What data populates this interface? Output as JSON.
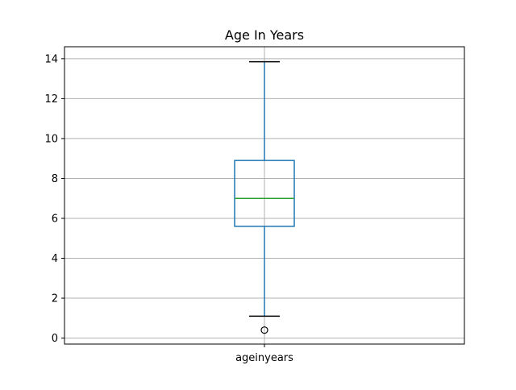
{
  "chart_data": {
    "type": "box",
    "title": "Age In Years",
    "xlabel": "",
    "ylabel": "",
    "categories": [
      "ageinyears"
    ],
    "boxes": [
      {
        "label": "ageinyears",
        "whisker_low": 1.1,
        "q1": 5.6,
        "median": 7.0,
        "q3": 8.9,
        "whisker_high": 13.85,
        "outliers": [
          0.4
        ]
      }
    ],
    "ylim": [
      -0.3,
      14.6
    ],
    "yticks": [
      0,
      2,
      4,
      6,
      8,
      10,
      12,
      14
    ],
    "grid": true,
    "colors": {
      "box": "#1f77b4",
      "median": "#2ca02c",
      "whisker": "#1f77b4",
      "cap": "#000000",
      "grid": "#b0b0b0",
      "outlier": "#000000"
    }
  }
}
